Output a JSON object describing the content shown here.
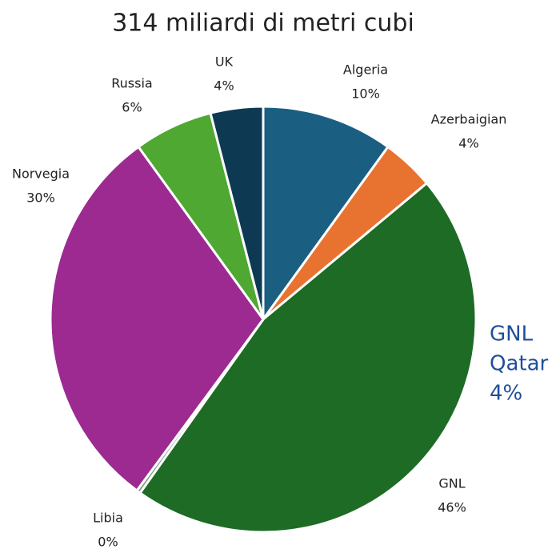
{
  "chart_data": {
    "type": "pie",
    "title": "314 miliardi di metri cubi",
    "categories": [
      "Algeria",
      "Azerbaigian",
      "GNL",
      "Libia",
      "Norvegia",
      "Russia",
      "UK"
    ],
    "values": [
      10,
      4,
      46,
      0.3,
      30,
      6,
      4
    ],
    "value_labels": [
      "10%",
      "4%",
      "46%",
      "0%",
      "30%",
      "6%",
      "4%"
    ],
    "colors": [
      "#1a5e82",
      "#e87331",
      "#1d6b25",
      "#7f9f86",
      "#9c2a91",
      "#4ea832",
      "#0d3a52"
    ],
    "annotation": [
      "GNL",
      "Qatar",
      "4%"
    ],
    "annotation_color": "#1f4e9c"
  }
}
